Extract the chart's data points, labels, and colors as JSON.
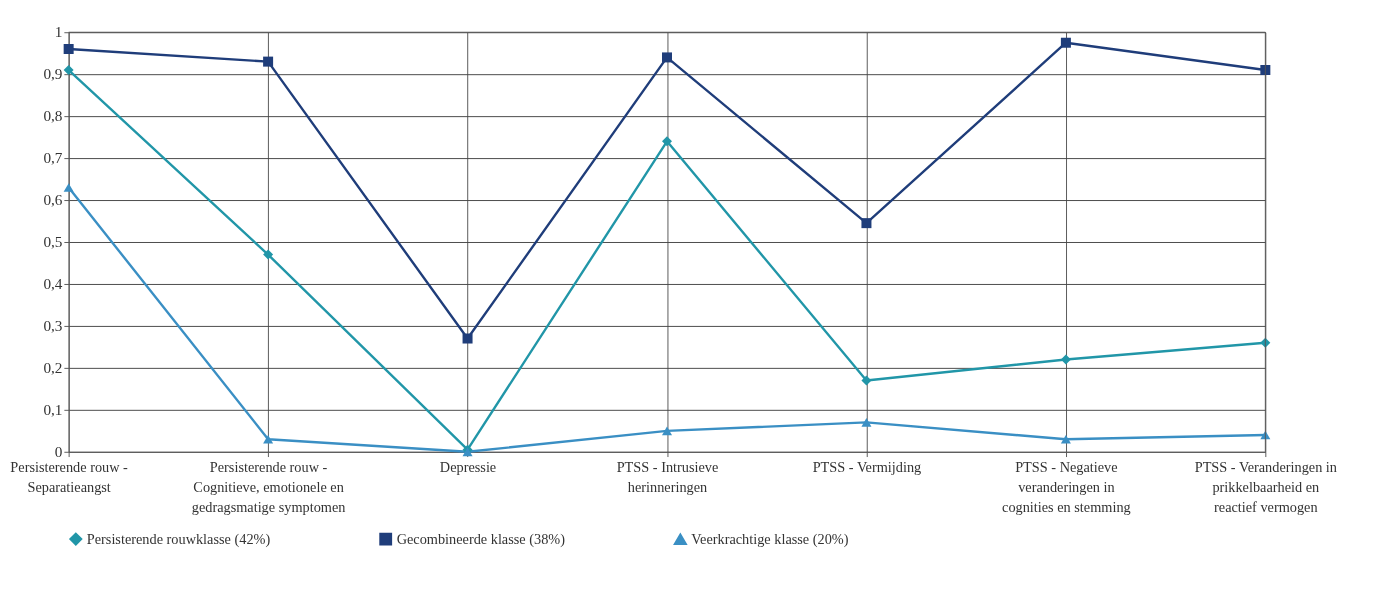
{
  "chart_data": {
    "type": "line",
    "categories": [
      "Persisterende rouw -\nSeparatieangst",
      "Persisterende rouw -\nCognitieve, emotionele en\ngedragsmatige symptomen",
      "Depressie",
      "PTSS - Intrusieve\nherinneringen",
      "PTSS - Vermijding",
      "PTSS - Negatieve\nveranderingen in\ncognities en stemming",
      "PTSS - Veranderingen in\nprikkelbaarheid en\nreactief vermogen"
    ],
    "series": [
      {
        "name": "Persisterende rouwklasse (42%)",
        "color": "#2196a8",
        "marker": "diamond",
        "values": [
          0.91,
          0.47,
          0.005,
          0.74,
          0.17,
          0.22,
          0.26
        ]
      },
      {
        "name": "Gecombineerde klasse (38%)",
        "color": "#1f3d7a",
        "marker": "square",
        "values": [
          0.96,
          0.93,
          0.27,
          0.94,
          0.545,
          0.975,
          0.91
        ]
      },
      {
        "name": "Veerkrachtige klasse (20%)",
        "color": "#3a8fc4",
        "marker": "triangle",
        "values": [
          0.63,
          0.03,
          0.0,
          0.05,
          0.07,
          0.03,
          0.04
        ]
      }
    ],
    "ylim": [
      0,
      1
    ],
    "yticks": [
      0,
      {
        "value": 0.1,
        "label": "0,1"
      },
      {
        "value": 0.2,
        "label": "0,2"
      },
      {
        "value": 0.3,
        "label": "0,3"
      },
      {
        "value": 0.4,
        "label": "0,4"
      },
      {
        "value": 0.5,
        "label": "0,5"
      },
      {
        "value": 0.6,
        "label": "0,6"
      },
      {
        "value": 0.7,
        "label": "0,7"
      },
      {
        "value": 0.8,
        "label": "0,8"
      },
      {
        "value": 0.9,
        "label": "0,9"
      },
      1
    ],
    "grid": true,
    "legend": "bottom",
    "line_style": "solid"
  }
}
